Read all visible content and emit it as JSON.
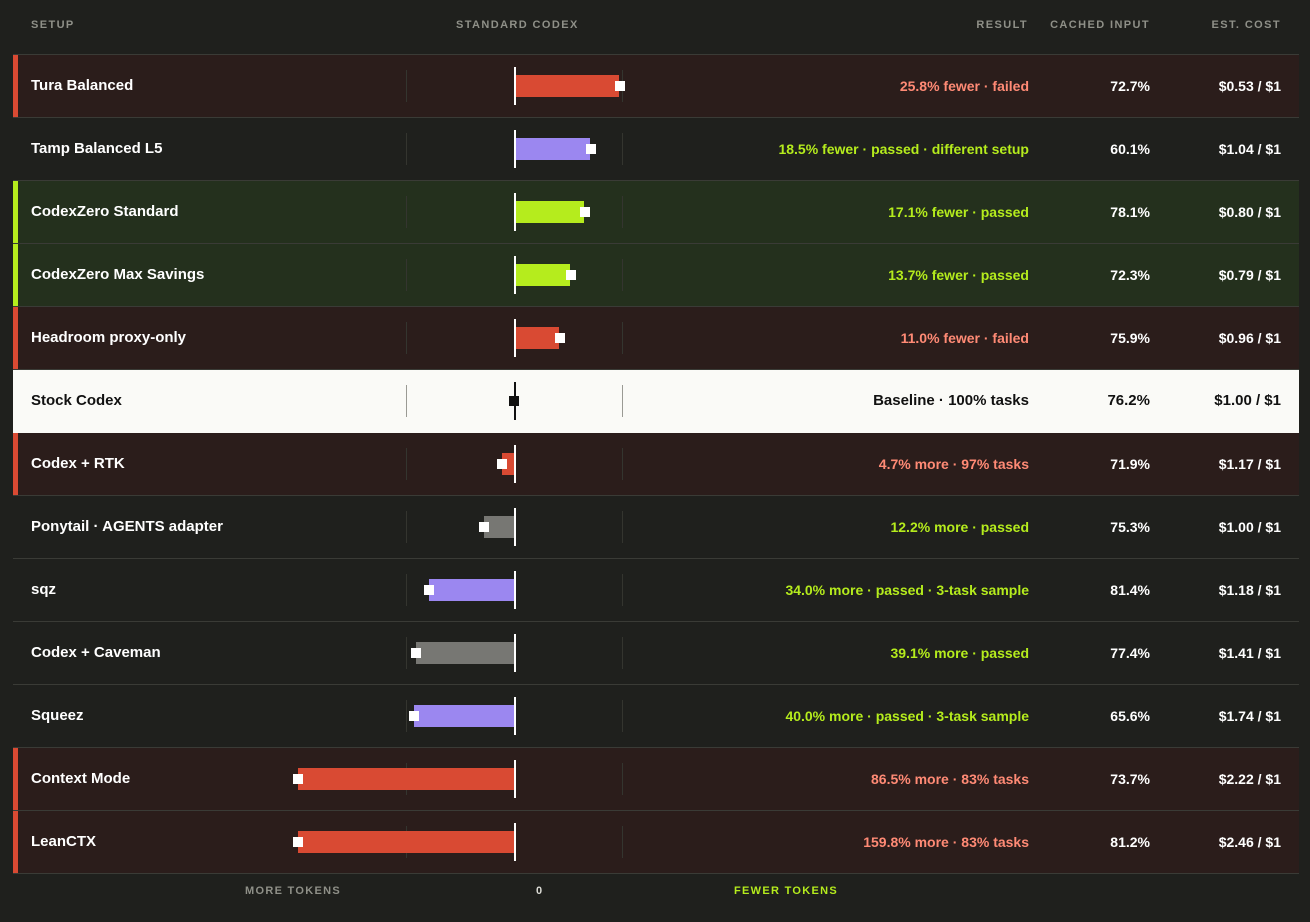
{
  "headers": {
    "setup": "SETUP",
    "standard": "STANDARD CODEX",
    "result": "RESULT",
    "cached": "CACHED INPUT",
    "cost": "EST. COST"
  },
  "footer": {
    "more": "MORE TOKENS",
    "zero": "0",
    "fewer": "FEWER TOKENS"
  },
  "colors": {
    "fail": "#d94a33",
    "pass_green": "#b5ec1d",
    "purple": "#9b87f0",
    "gray": "#777773"
  },
  "chart_data": {
    "type": "bar",
    "orientation": "horizontal",
    "x_axis": "token change vs Stock Codex (positive = fewer tokens)",
    "rows": [
      {
        "name": "Tura Balanced",
        "value": 25.8,
        "result": "25.8% fewer · failed",
        "status": "fail",
        "bar": "fail",
        "cached": "72.7%",
        "cost": "$0.53 / $1"
      },
      {
        "name": "Tamp Balanced L5",
        "value": 18.5,
        "result": "18.5% fewer · passed · different setup",
        "status": "pass",
        "bar": "pass-purple",
        "cached": "60.1%",
        "cost": "$1.04 / $1"
      },
      {
        "name": "CodexZero Standard",
        "value": 17.1,
        "result": "17.1% fewer · passed",
        "status": "good",
        "bar": "pass-green",
        "cached": "78.1%",
        "cost": "$0.80 / $1"
      },
      {
        "name": "CodexZero Max Savings",
        "value": 13.7,
        "result": "13.7% fewer · passed",
        "status": "good",
        "bar": "pass-green",
        "cached": "72.3%",
        "cost": "$0.79 / $1"
      },
      {
        "name": "Headroom proxy-only",
        "value": 11.0,
        "result": "11.0% fewer · failed",
        "status": "fail",
        "bar": "fail",
        "cached": "75.9%",
        "cost": "$0.96 / $1"
      },
      {
        "name": "Stock Codex",
        "value": 0,
        "result": "Baseline · 100% tasks",
        "status": "base",
        "bar": "none",
        "cached": "76.2%",
        "cost": "$1.00 / $1"
      },
      {
        "name": "Codex + RTK",
        "value": -4.7,
        "result": "4.7% more · 97% tasks",
        "status": "fail",
        "bar": "fail",
        "cached": "71.9%",
        "cost": "$1.17 / $1"
      },
      {
        "name": "Ponytail · AGENTS adapter",
        "value": -12.2,
        "result": "12.2% more · passed",
        "status": "pass",
        "bar": "pass-gray",
        "cached": "75.3%",
        "cost": "$1.00 / $1"
      },
      {
        "name": "sqz",
        "value": -34.0,
        "result": "34.0% more · passed · 3-task sample",
        "status": "pass",
        "bar": "pass-purple",
        "cached": "81.4%",
        "cost": "$1.18 / $1"
      },
      {
        "name": "Codex + Caveman",
        "value": -39.1,
        "result": "39.1% more · passed",
        "status": "pass",
        "bar": "pass-gray",
        "cached": "77.4%",
        "cost": "$1.41 / $1"
      },
      {
        "name": "Squeez",
        "value": -40.0,
        "result": "40.0% more · passed · 3-task sample",
        "status": "pass",
        "bar": "pass-purple",
        "cached": "65.6%",
        "cost": "$1.74 / $1"
      },
      {
        "name": "Context Mode",
        "value": -86.5,
        "result": "86.5% more · 83% tasks",
        "status": "fail",
        "bar": "fail",
        "cached": "73.7%",
        "cost": "$2.22 / $1"
      },
      {
        "name": "LeanCTX",
        "value": -159.8,
        "result": "159.8% more · 83% tasks",
        "status": "fail",
        "bar": "fail",
        "cached": "81.2%",
        "cost": "$2.46 / $1"
      }
    ]
  }
}
